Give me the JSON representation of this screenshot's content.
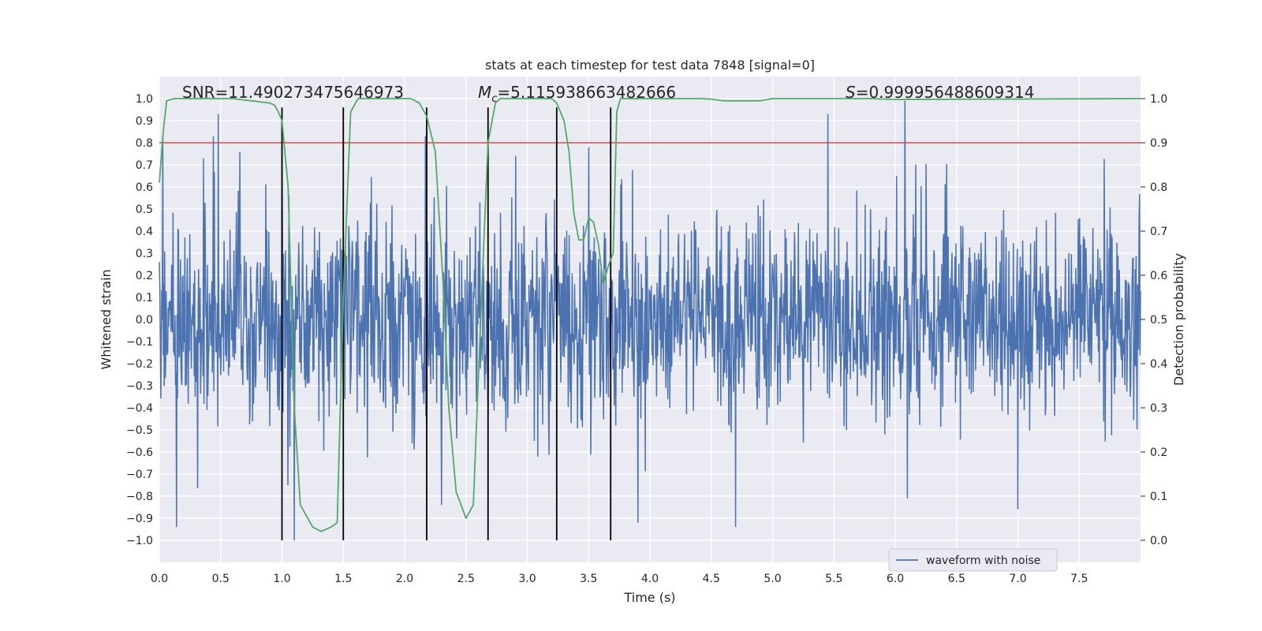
{
  "chart_data": {
    "type": "line",
    "title": "stats at each timestep for test data 7848 [signal=0]",
    "xlabel": "Time (s)",
    "ylabel": "Whitened strain",
    "y2label": "Detection probability",
    "xlim": [
      0.0,
      8.0
    ],
    "ylim": [
      -1.1,
      1.1
    ],
    "y2lim": [
      -0.05,
      1.05
    ],
    "xticks": [
      0.0,
      0.5,
      1.0,
      1.5,
      2.0,
      2.5,
      3.0,
      3.5,
      4.0,
      4.5,
      5.0,
      5.5,
      6.0,
      6.5,
      7.0,
      7.5
    ],
    "yticks": [
      -1.0,
      -0.9,
      -0.8,
      -0.7,
      -0.6,
      -0.5,
      -0.4,
      -0.3,
      -0.2,
      -0.1,
      0.0,
      0.1,
      0.2,
      0.3,
      0.4,
      0.5,
      0.6,
      0.7,
      0.8,
      0.9,
      1.0
    ],
    "y2ticks": [
      0.0,
      0.1,
      0.2,
      0.3,
      0.4,
      0.5,
      0.6,
      0.7,
      0.8,
      0.9,
      1.0
    ],
    "grid": true,
    "annotations": {
      "snr": "SNR=11.490273475646973",
      "mc": "=5.115938663482666",
      "mc_symbol": "M",
      "mc_sub": "c",
      "s": "=0.999956488609314",
      "s_symbol": "S"
    },
    "legend": {
      "position": "bottom-right",
      "entries": [
        "waveform with noise"
      ]
    },
    "threshold": {
      "axis": "right",
      "value": 0.9,
      "color": "#c44e52"
    },
    "vertical_markers": {
      "x": [
        1.0,
        1.5,
        2.18,
        2.68,
        3.24,
        3.68
      ],
      "from": -1.0,
      "to": 0.96,
      "color": "#000000"
    },
    "series": [
      {
        "name": "waveform with noise",
        "axis": "left",
        "color": "#4c72b0",
        "x_range": [
          0.0,
          8.0
        ],
        "samples": 2000,
        "seed": 7848,
        "typical_amplitude": 0.45,
        "spikes": [
          {
            "x": 0.03,
            "y": 0.83
          },
          {
            "x": 0.14,
            "y": -0.94
          },
          {
            "x": 0.44,
            "y": 0.83
          },
          {
            "x": 0.48,
            "y": 0.93
          },
          {
            "x": 1.0,
            "y": 0.78
          },
          {
            "x": 1.05,
            "y": -0.75
          },
          {
            "x": 1.1,
            "y": -1.0
          },
          {
            "x": 2.17,
            "y": 0.83
          },
          {
            "x": 2.3,
            "y": -0.84
          },
          {
            "x": 3.5,
            "y": 0.78
          },
          {
            "x": 3.9,
            "y": -0.92
          },
          {
            "x": 4.7,
            "y": -0.94
          },
          {
            "x": 5.45,
            "y": 0.93
          },
          {
            "x": 6.08,
            "y": 0.99
          },
          {
            "x": 6.1,
            "y": -0.81
          },
          {
            "x": 7.0,
            "y": -0.86
          }
        ]
      },
      {
        "name": "detection probability",
        "axis": "right",
        "color": "#55a868",
        "x": [
          0.0,
          0.03,
          0.06,
          0.12,
          0.3,
          0.6,
          0.9,
          0.94,
          0.97,
          1.0,
          1.05,
          1.1,
          1.15,
          1.25,
          1.32,
          1.4,
          1.45,
          1.5,
          1.56,
          1.62,
          1.7,
          2.05,
          2.12,
          2.18,
          2.25,
          2.31,
          2.36,
          2.42,
          2.5,
          2.56,
          2.62,
          2.68,
          2.74,
          2.78,
          2.85,
          3.2,
          3.24,
          3.3,
          3.34,
          3.38,
          3.42,
          3.46,
          3.5,
          3.54,
          3.58,
          3.62,
          3.66,
          3.7,
          3.73,
          3.76,
          3.8,
          3.85,
          4.4,
          4.5,
          4.6,
          4.8,
          4.9,
          5.0,
          5.8,
          6.0,
          8.0
        ],
        "y": [
          0.81,
          0.92,
          0.995,
          1.0,
          1.0,
          1.0,
          0.99,
          0.985,
          0.97,
          0.95,
          0.8,
          0.3,
          0.08,
          0.03,
          0.02,
          0.03,
          0.04,
          0.55,
          0.97,
          1.0,
          1.0,
          1.0,
          0.99,
          0.96,
          0.88,
          0.6,
          0.3,
          0.11,
          0.05,
          0.08,
          0.5,
          0.9,
          0.99,
          1.0,
          1.0,
          1.0,
          0.99,
          0.95,
          0.88,
          0.74,
          0.68,
          0.68,
          0.73,
          0.72,
          0.67,
          0.58,
          0.62,
          0.65,
          0.97,
          1.0,
          1.0,
          1.0,
          1.0,
          0.999,
          0.995,
          0.995,
          0.995,
          1.0,
          1.0,
          0.998,
          1.0
        ]
      }
    ]
  }
}
